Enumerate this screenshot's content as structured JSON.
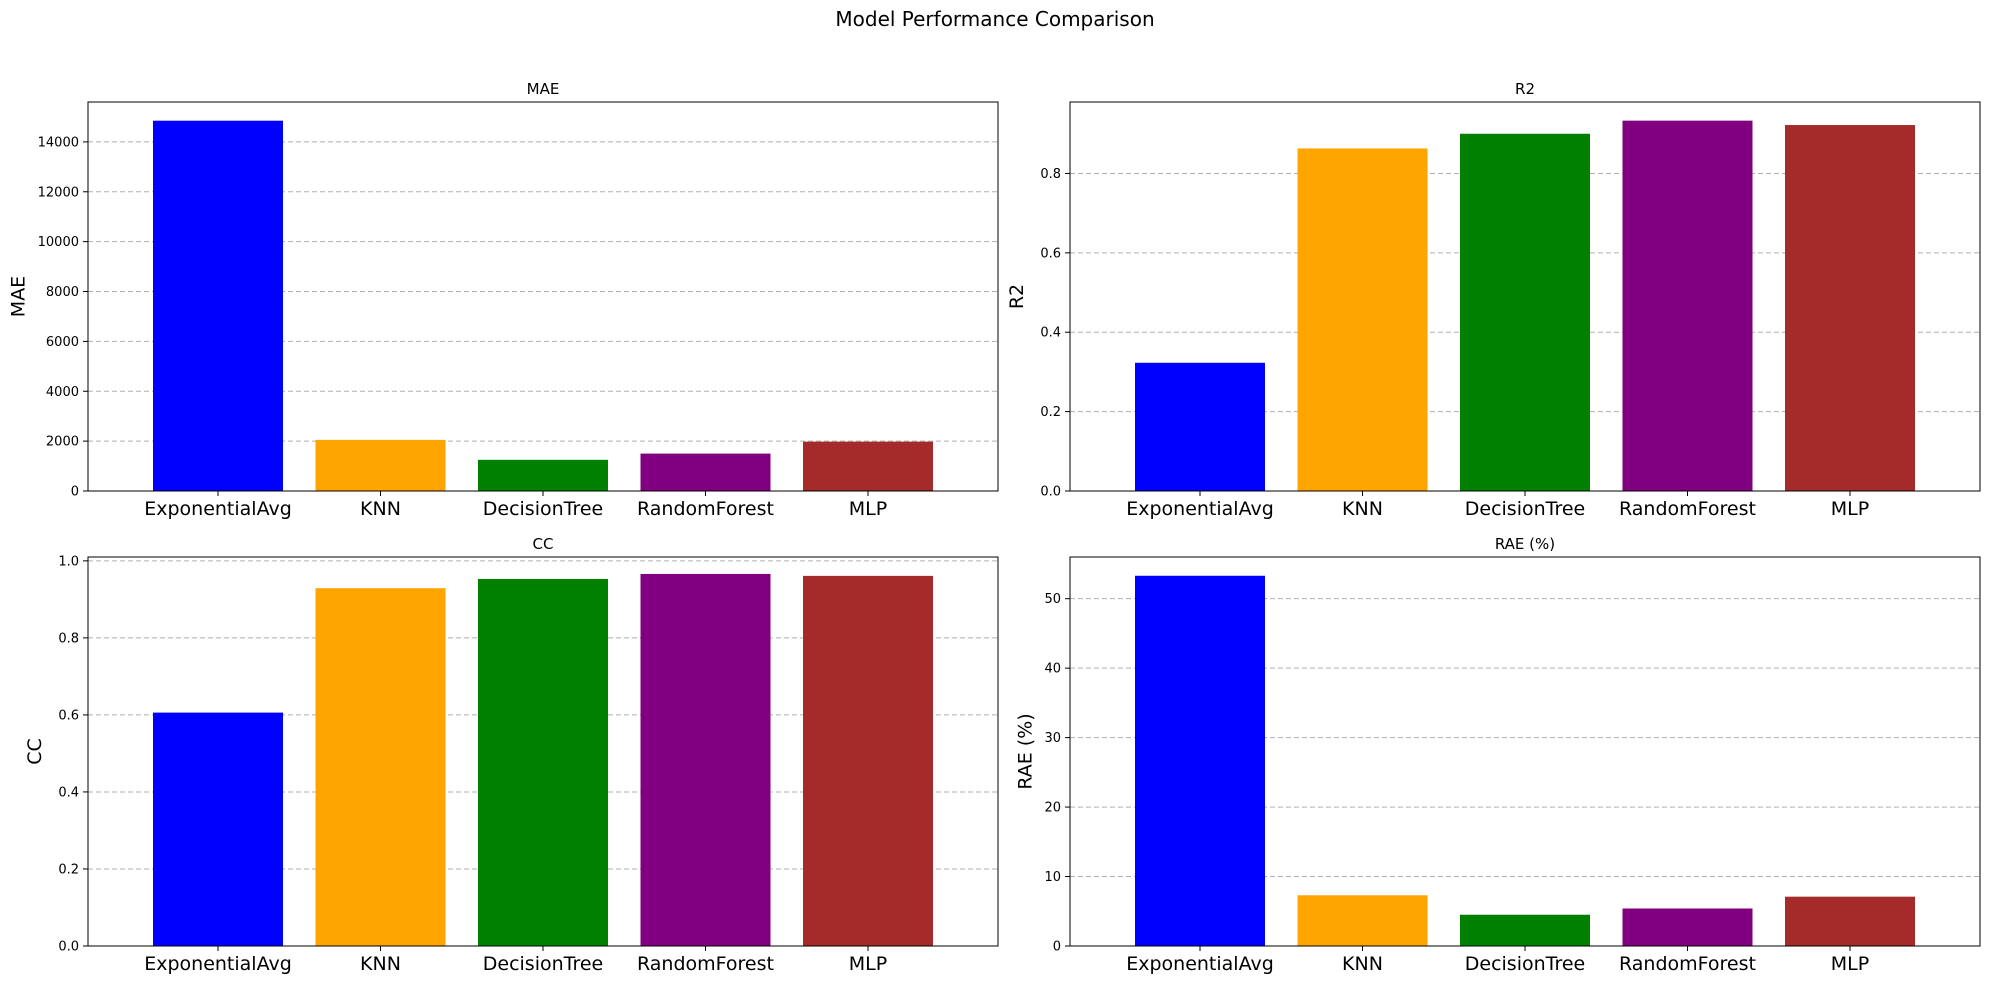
{
  "figure": {
    "title": "Model Performance Comparison"
  },
  "chart_data": [
    {
      "type": "bar",
      "title": "MAE",
      "xlabel": "",
      "ylabel": "MAE",
      "ylim": [
        0,
        15600
      ],
      "yticks": [
        0,
        2000,
        4000,
        6000,
        8000,
        10000,
        12000,
        14000
      ],
      "grid": "y",
      "categories": [
        "ExponentialAvg",
        "KNN",
        "DecisionTree",
        "RandomForest",
        "MLP"
      ],
      "values": [
        14850,
        2050,
        1250,
        1500,
        1980
      ],
      "colors": [
        "#0000ff",
        "#ffa500",
        "#008000",
        "#800080",
        "#a52a2a"
      ]
    },
    {
      "type": "bar",
      "title": "R2",
      "xlabel": "",
      "ylabel": "R2",
      "ylim": [
        0,
        0.98
      ],
      "yticks": [
        0.0,
        0.2,
        0.4,
        0.6,
        0.8
      ],
      "grid": "y",
      "categories": [
        "ExponentialAvg",
        "KNN",
        "DecisionTree",
        "RandomForest",
        "MLP"
      ],
      "values": [
        0.323,
        0.863,
        0.9,
        0.933,
        0.922
      ],
      "colors": [
        "#0000ff",
        "#ffa500",
        "#008000",
        "#800080",
        "#a52a2a"
      ]
    },
    {
      "type": "bar",
      "title": "CC",
      "xlabel": "",
      "ylabel": "CC",
      "ylim": [
        0,
        1.01
      ],
      "yticks": [
        0.0,
        0.2,
        0.4,
        0.6,
        0.8,
        1.0
      ],
      "grid": "y",
      "categories": [
        "ExponentialAvg",
        "KNN",
        "DecisionTree",
        "RandomForest",
        "MLP"
      ],
      "values": [
        0.606,
        0.929,
        0.953,
        0.966,
        0.961
      ],
      "colors": [
        "#0000ff",
        "#ffa500",
        "#008000",
        "#800080",
        "#a52a2a"
      ]
    },
    {
      "type": "bar",
      "title": "RAE (%)",
      "xlabel": "",
      "ylabel": "RAE (%)",
      "ylim": [
        0,
        56
      ],
      "yticks": [
        0,
        10,
        20,
        30,
        40,
        50
      ],
      "grid": "y",
      "categories": [
        "ExponentialAvg",
        "KNN",
        "DecisionTree",
        "RandomForest",
        "MLP"
      ],
      "values": [
        53.3,
        7.3,
        4.5,
        5.4,
        7.1
      ],
      "colors": [
        "#0000ff",
        "#ffa500",
        "#008000",
        "#800080",
        "#a52a2a"
      ]
    }
  ]
}
